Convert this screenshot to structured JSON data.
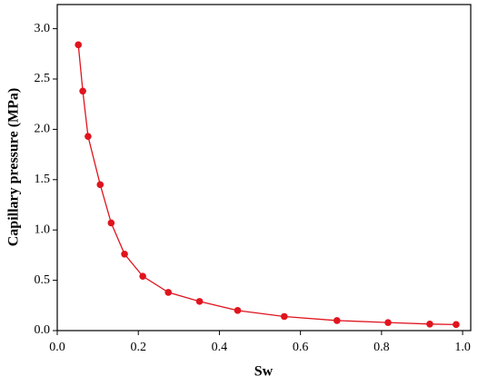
{
  "chart_data": {
    "type": "line",
    "x_label": "Sw",
    "y_label": "Capillary pressure (MPa)",
    "x": [
      0.052,
      0.063,
      0.076,
      0.106,
      0.133,
      0.166,
      0.211,
      0.274,
      0.351,
      0.445,
      0.56,
      0.69,
      0.816,
      0.919,
      0.984
    ],
    "series": [
      {
        "color": "#e0141e",
        "values": [
          2.84,
          2.38,
          1.93,
          1.45,
          1.07,
          0.76,
          0.54,
          0.38,
          0.29,
          0.2,
          0.14,
          0.1,
          0.08,
          0.065,
          0.06
        ]
      }
    ],
    "xlim": [
      0,
      1.02
    ],
    "ylim": [
      0,
      3.24
    ],
    "xticks": [
      {
        "value": 0,
        "label": "0.0"
      },
      0.2,
      0.4,
      0.6,
      0.8,
      {
        "value": 1,
        "label": "1.0"
      }
    ],
    "yticks": [
      {
        "value": 0,
        "label": "0.0"
      },
      0.5,
      {
        "value": 1,
        "label": "1.0"
      },
      1.5,
      {
        "value": 2,
        "label": "2.0"
      },
      2.5,
      {
        "value": 3,
        "label": "3.0"
      }
    ]
  }
}
